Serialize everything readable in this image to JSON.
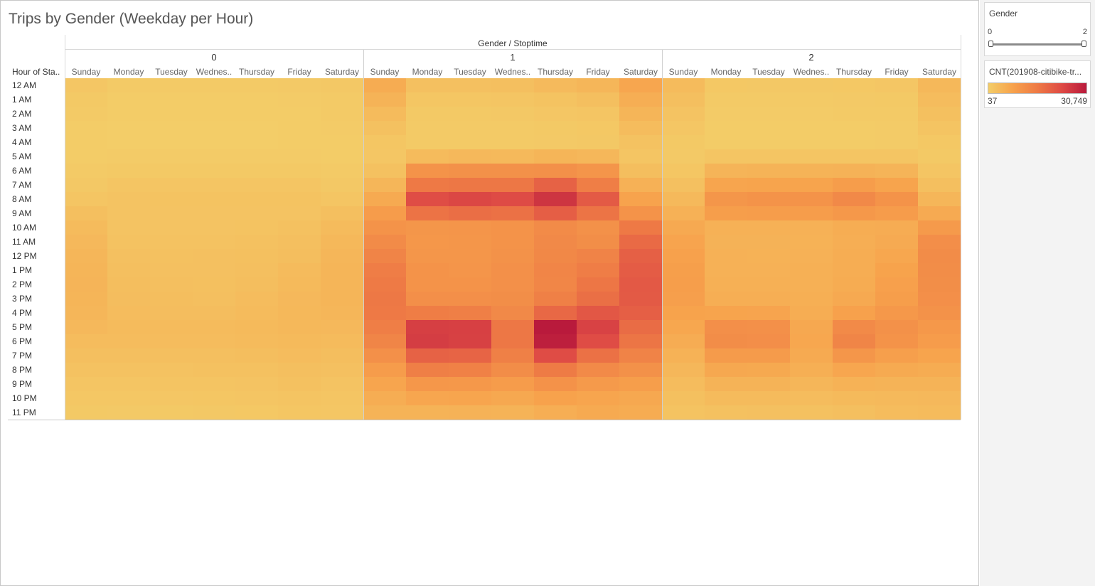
{
  "title": "Trips by Gender (Weekday per Hour)",
  "filter": {
    "title": "Gender",
    "min_label": "0",
    "max_label": "2"
  },
  "legend": {
    "title": "CNT(201908-citibike-tr...",
    "min_label": "37",
    "max_label": "30,749",
    "colors": [
      "#f3cd68",
      "#f7a24c",
      "#ee7a45",
      "#de4a45",
      "#b91a3c"
    ]
  },
  "chart_data": {
    "type": "heatmap",
    "column_header": "Gender / Stoptime",
    "row_header": "Hour of Sta..",
    "value_range": [
      37,
      30749
    ],
    "groups": [
      "0",
      "1",
      "2"
    ],
    "days": [
      "Sunday",
      "Monday",
      "Tuesday",
      "Wednes..",
      "Thursday",
      "Friday",
      "Saturday"
    ],
    "hours": [
      "12 AM",
      "1 AM",
      "2 AM",
      "3 AM",
      "4 AM",
      "5 AM",
      "6 AM",
      "7 AM",
      "8 AM",
      "9 AM",
      "10 AM",
      "11 AM",
      "12 PM",
      "1 PM",
      "2 PM",
      "3 PM",
      "4 PM",
      "5 PM",
      "6 PM",
      "7 PM",
      "8 PM",
      "9 PM",
      "10 PM",
      "11 PM"
    ],
    "series": [
      {
        "name": "0",
        "values": [
          [
            1200,
            600,
            500,
            500,
            600,
            700,
            900
          ],
          [
            800,
            300,
            300,
            300,
            300,
            400,
            600
          ],
          [
            500,
            200,
            200,
            200,
            200,
            300,
            500
          ],
          [
            300,
            100,
            100,
            100,
            100,
            200,
            400
          ],
          [
            200,
            100,
            100,
            100,
            100,
            200,
            300
          ],
          [
            300,
            400,
            400,
            400,
            400,
            400,
            300
          ],
          [
            500,
            800,
            800,
            800,
            800,
            800,
            500
          ],
          [
            900,
            1400,
            1500,
            1500,
            1500,
            1400,
            900
          ],
          [
            1500,
            1800,
            1900,
            1900,
            1900,
            1900,
            1500
          ],
          [
            2500,
            1800,
            1800,
            1800,
            1800,
            1800,
            2500
          ],
          [
            3300,
            1800,
            1800,
            1800,
            1900,
            2100,
            3300
          ],
          [
            3700,
            2000,
            2000,
            2000,
            2100,
            2500,
            3800
          ],
          [
            4100,
            2300,
            2200,
            2300,
            2400,
            2800,
            4200
          ],
          [
            4400,
            2500,
            2300,
            2300,
            2600,
            3200,
            4300
          ],
          [
            4500,
            2700,
            2500,
            2400,
            2800,
            3500,
            4400
          ],
          [
            4400,
            2900,
            2700,
            2600,
            3100,
            3700,
            4300
          ],
          [
            4100,
            3100,
            2900,
            2900,
            3300,
            3800,
            4100
          ],
          [
            3700,
            3200,
            3200,
            3200,
            3500,
            3800,
            3700
          ],
          [
            3100,
            3000,
            3000,
            3000,
            3300,
            3500,
            3300
          ],
          [
            2600,
            2500,
            2500,
            2600,
            2800,
            3100,
            2800
          ],
          [
            2000,
            2000,
            2000,
            2100,
            2200,
            2500,
            2300
          ],
          [
            1500,
            1500,
            1600,
            1600,
            1800,
            2100,
            1800
          ],
          [
            1100,
            1100,
            1200,
            1300,
            1400,
            1700,
            1500
          ],
          [
            800,
            700,
            800,
            900,
            1000,
            1300,
            1200
          ]
        ]
      },
      {
        "name": "1",
        "values": [
          [
            6000,
            2300,
            2300,
            2600,
            3400,
            4100,
            7000
          ],
          [
            4600,
            1300,
            1300,
            1500,
            1900,
            2600,
            5600
          ],
          [
            3300,
            800,
            800,
            900,
            1200,
            1500,
            4300
          ],
          [
            2100,
            500,
            500,
            600,
            800,
            1000,
            3000
          ],
          [
            1300,
            500,
            500,
            600,
            700,
            900,
            2000
          ],
          [
            1200,
            3300,
            3700,
            3600,
            4300,
            4000,
            1500
          ],
          [
            2200,
            10600,
            11000,
            11000,
            11200,
            10300,
            2800
          ],
          [
            4200,
            15500,
            15800,
            15900,
            19300,
            14700,
            5000
          ],
          [
            6300,
            22600,
            23600,
            22900,
            26500,
            20500,
            7500
          ],
          [
            8900,
            16500,
            17300,
            16900,
            19800,
            16300,
            10500
          ],
          [
            10500,
            10000,
            10300,
            10500,
            12200,
            11000,
            15500
          ],
          [
            12200,
            9800,
            10000,
            10600,
            12600,
            11600,
            18000
          ],
          [
            13500,
            10100,
            10000,
            10800,
            12700,
            13600,
            19500
          ],
          [
            14800,
            10500,
            10200,
            11200,
            13200,
            14800,
            20200
          ],
          [
            15300,
            10500,
            10600,
            11100,
            13100,
            16000,
            20700
          ],
          [
            15700,
            11400,
            11300,
            11600,
            14200,
            17100,
            20500
          ],
          [
            15500,
            14900,
            14500,
            12600,
            18200,
            21000,
            19700
          ],
          [
            14600,
            24800,
            24600,
            15800,
            30749,
            24300,
            17700
          ],
          [
            13300,
            25100,
            24500,
            15900,
            30000,
            22800,
            16200
          ],
          [
            11200,
            19200,
            18900,
            14200,
            22800,
            16800,
            13600
          ],
          [
            8900,
            14500,
            14000,
            11800,
            15200,
            12400,
            11000
          ],
          [
            7100,
            9800,
            9700,
            8900,
            10700,
            9300,
            8500
          ],
          [
            5800,
            7000,
            7100,
            6600,
            7800,
            7200,
            6600
          ],
          [
            4700,
            4600,
            4800,
            4600,
            5600,
            6300,
            6000
          ]
        ]
      },
      {
        "name": "2",
        "values": [
          [
            3200,
            1000,
            900,
            900,
            1000,
            1200,
            3800
          ],
          [
            2500,
            600,
            600,
            600,
            700,
            800,
            3100
          ],
          [
            1800,
            400,
            400,
            400,
            500,
            600,
            2400
          ],
          [
            1200,
            300,
            300,
            300,
            300,
            400,
            1600
          ],
          [
            800,
            300,
            300,
            300,
            300,
            400,
            1000
          ],
          [
            700,
            1400,
            1500,
            1500,
            1500,
            1500,
            800
          ],
          [
            1300,
            4500,
            4700,
            4600,
            4800,
            4500,
            1500
          ],
          [
            2300,
            7200,
            7400,
            7400,
            8600,
            7400,
            2600
          ],
          [
            3600,
            10100,
            10600,
            10500,
            12600,
            10500,
            4200
          ],
          [
            5000,
            8500,
            8700,
            8700,
            9600,
            8800,
            6200
          ],
          [
            6400,
            5000,
            5000,
            5000,
            5700,
            5900,
            9300
          ],
          [
            7300,
            4800,
            4800,
            4900,
            5600,
            6200,
            11500
          ],
          [
            7900,
            5000,
            4900,
            5100,
            5700,
            6900,
            12000
          ],
          [
            8300,
            5100,
            5000,
            5200,
            5800,
            7600,
            11700
          ],
          [
            8400,
            5200,
            5200,
            5200,
            6000,
            8100,
            11600
          ],
          [
            8200,
            5600,
            5600,
            5400,
            6400,
            8500,
            11400
          ],
          [
            7600,
            7400,
            7300,
            5800,
            8000,
            9600,
            10800
          ],
          [
            6800,
            11400,
            11200,
            6700,
            12300,
            11000,
            9700
          ],
          [
            5900,
            11800,
            11500,
            6800,
            13300,
            10500,
            8800
          ],
          [
            4900,
            9000,
            9000,
            6300,
            10000,
            8200,
            7400
          ],
          [
            3900,
            6600,
            6500,
            5400,
            7000,
            6300,
            6000
          ],
          [
            3000,
            4600,
            4600,
            4100,
            4900,
            4700,
            4700
          ],
          [
            2400,
            3200,
            3300,
            3100,
            3500,
            3600,
            3700
          ],
          [
            1900,
            2100,
            2300,
            2200,
            2600,
            3000,
            3200
          ]
        ]
      }
    ]
  }
}
